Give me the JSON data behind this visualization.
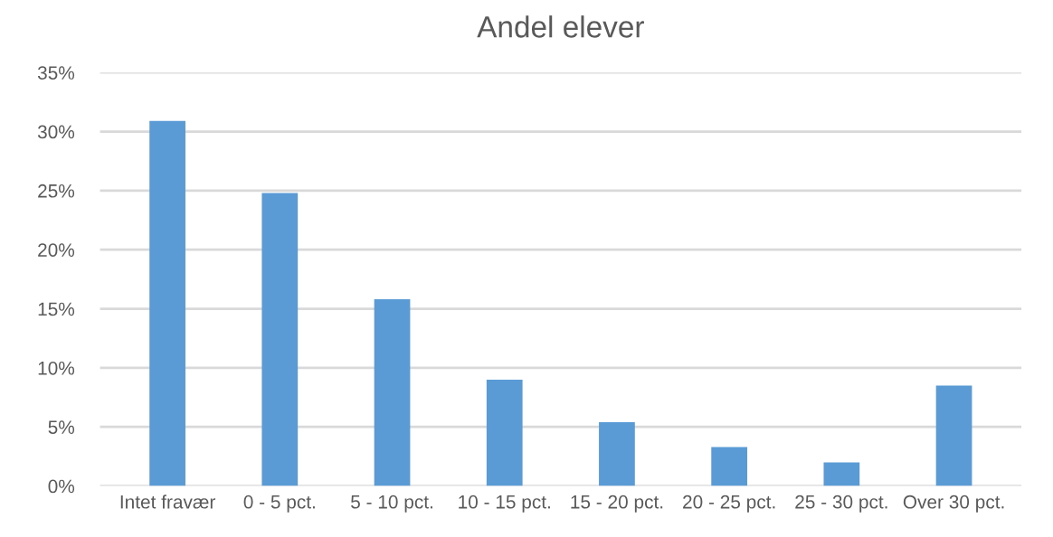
{
  "chart_data": {
    "type": "bar",
    "title": "Andel elever",
    "categories": [
      "Intet fravær",
      "0 - 5 pct.",
      "5 - 10 pct.",
      "10 - 15 pct.",
      "15 - 20 pct.",
      "20 - 25 pct.",
      "25 - 30 pct.",
      "Over 30 pct."
    ],
    "values": [
      30.9,
      24.8,
      15.8,
      9.0,
      5.4,
      3.3,
      2.0,
      8.5
    ],
    "color": "#5b9bd5",
    "ylim": [
      0,
      35
    ],
    "yticks": [
      {
        "value": 0,
        "label": "0%"
      },
      {
        "value": 5,
        "label": "5%"
      },
      {
        "value": 10,
        "label": "10%"
      },
      {
        "value": 15,
        "label": "15%"
      },
      {
        "value": 20,
        "label": "20%"
      },
      {
        "value": 25,
        "label": "25%"
      },
      {
        "value": 30,
        "label": "30%"
      },
      {
        "value": 35,
        "label": "35%"
      }
    ],
    "grid": "y"
  }
}
